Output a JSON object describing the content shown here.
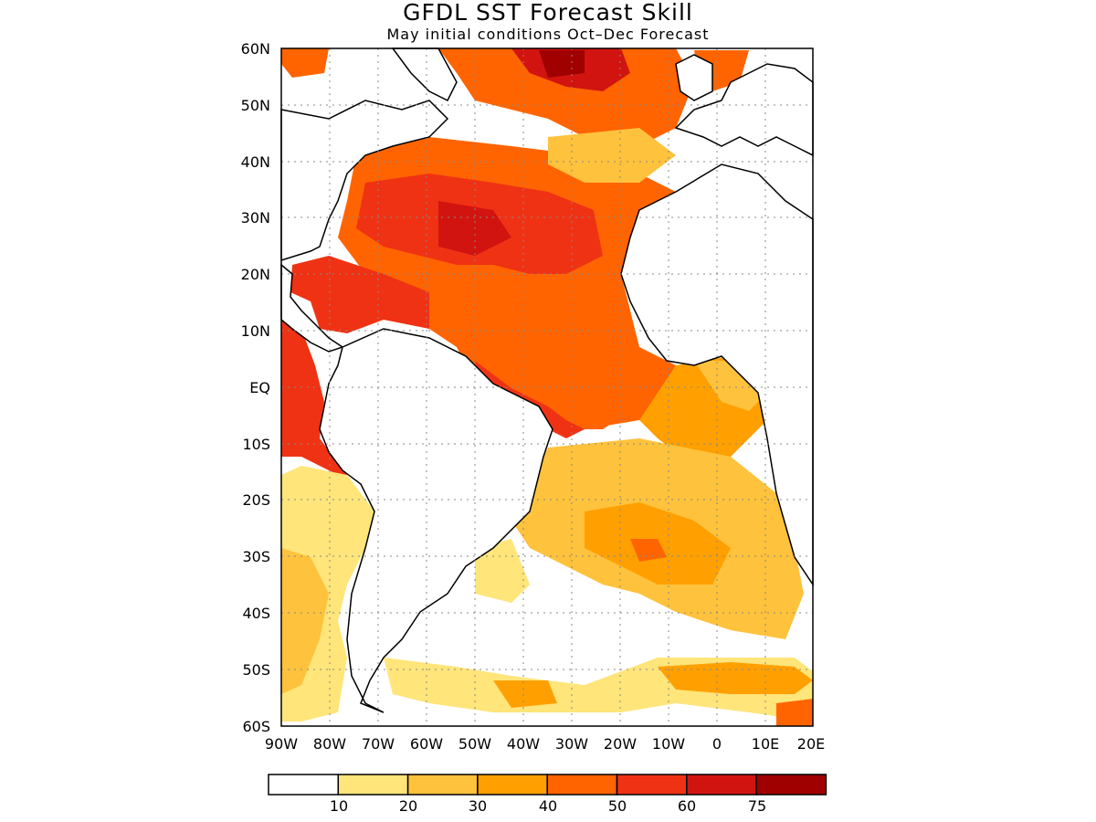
{
  "title": "GFDL SST Forecast Skill",
  "subtitle": "May initial conditions  Oct–Dec Forecast",
  "map": {
    "lat_labels": [
      "60N",
      "50N",
      "40N",
      "30N",
      "20N",
      "10N",
      "EQ",
      "10S",
      "20S",
      "30S",
      "40S",
      "50S",
      "60S"
    ],
    "lon_labels": [
      "90W",
      "80W",
      "70W",
      "60W",
      "50W",
      "40W",
      "30W",
      "20W",
      "10W",
      "0",
      "10E",
      "20E"
    ]
  },
  "colorbar": {
    "colors": [
      "#ffffff",
      "#ffe57a",
      "#ffc23c",
      "#ffa000",
      "#ff6400",
      "#f03214",
      "#d21410",
      "#a00000"
    ],
    "labels": [
      "10",
      "20",
      "30",
      "40",
      "50",
      "60",
      "75"
    ]
  },
  "chart_data": {
    "type": "heatmap",
    "title": "GFDL SST Forecast Skill",
    "subtitle": "May initial conditions  Oct–Dec Forecast",
    "xlim": [
      -90,
      20
    ],
    "ylim": [
      -60,
      60
    ],
    "legend_levels": [
      10,
      20,
      30,
      40,
      50,
      60,
      75
    ],
    "grid": true
  }
}
